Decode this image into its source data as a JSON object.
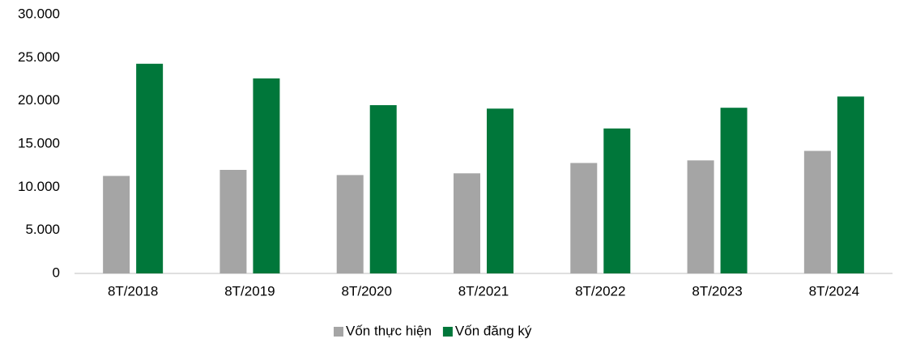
{
  "chart_data": {
    "type": "bar",
    "categories": [
      "8T/2018",
      "8T/2019",
      "8T/2020",
      "8T/2021",
      "8T/2022",
      "8T/2023",
      "8T/2024"
    ],
    "series": [
      {
        "name": "Vốn thực hiện",
        "color": "#a5a5a5",
        "values": [
          11300,
          12000,
          11400,
          11600,
          12800,
          13100,
          14200
        ]
      },
      {
        "name": "Vốn đăng ký",
        "color": "#00773a",
        "values": [
          24300,
          22600,
          19500,
          19100,
          16800,
          19200,
          20500
        ]
      }
    ],
    "ylim": [
      0,
      30000
    ],
    "yticks": [
      0,
      {
        "value": 5000,
        "label": "5.000"
      },
      {
        "value": 10000,
        "label": "10.000"
      },
      {
        "value": 15000,
        "label": "15.000"
      },
      {
        "value": 20000,
        "label": "20.000"
      },
      {
        "value": 25000,
        "label": "25.000"
      },
      {
        "value": 30000,
        "label": "30.000"
      }
    ],
    "grid": false,
    "legend": "bottom"
  }
}
